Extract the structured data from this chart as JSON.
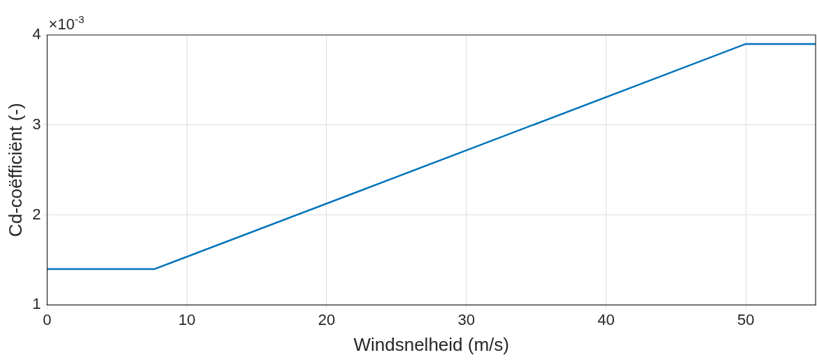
{
  "chart_data": {
    "type": "line",
    "xlabel": "Windsnelheid (m/s)",
    "ylabel": "Cd-coëfficiënt (-)",
    "annotations": [
      "×10$^{-3}$"
    ],
    "series": [
      {
        "color": "#0072bd",
        "x": [
          0,
          7.7,
          50,
          55
        ],
        "values": [
          1.4,
          1.4,
          3.9,
          3.9
        ]
      }
    ],
    "xlim": [
      0,
      55
    ],
    "xticks": [
      0,
      10,
      20,
      30,
      40,
      50
    ],
    "ylim": [
      1,
      4
    ],
    "yticks": [
      1,
      2,
      3,
      4
    ],
    "grid": true,
    "legend": false,
    "marker": "none",
    "line_style": "solid"
  }
}
